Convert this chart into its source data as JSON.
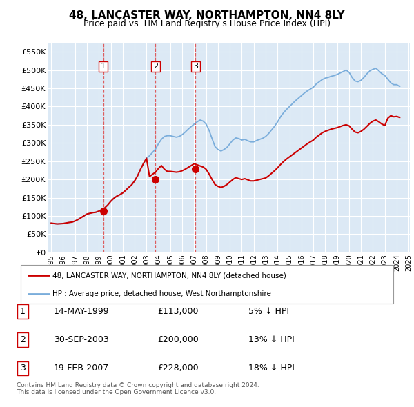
{
  "title": "48, LANCASTER WAY, NORTHAMPTON, NN4 8LY",
  "subtitle": "Price paid vs. HM Land Registry's House Price Index (HPI)",
  "plot_bg_color": "#dce9f5",
  "ylim": [
    0,
    575000
  ],
  "yticks": [
    0,
    50000,
    100000,
    150000,
    200000,
    250000,
    300000,
    350000,
    400000,
    450000,
    500000,
    550000
  ],
  "ytick_labels": [
    "£0",
    "£50K",
    "£100K",
    "£150K",
    "£200K",
    "£250K",
    "£300K",
    "£350K",
    "£400K",
    "£450K",
    "£500K",
    "£550K"
  ],
  "red_line_color": "#cc0000",
  "blue_line_color": "#7aaddb",
  "vline_color": "#dd4444",
  "box_edgecolor": "#cc0000",
  "purchases": [
    {
      "date_num": 1999.37,
      "price": 113000,
      "label": "1"
    },
    {
      "date_num": 2003.75,
      "price": 200000,
      "label": "2"
    },
    {
      "date_num": 2007.12,
      "price": 228000,
      "label": "3"
    }
  ],
  "table_entries": [
    {
      "num": "1",
      "date": "14-MAY-1999",
      "price": "£113,000",
      "pct": "5% ↓ HPI"
    },
    {
      "num": "2",
      "date": "30-SEP-2003",
      "price": "£200,000",
      "pct": "13% ↓ HPI"
    },
    {
      "num": "3",
      "date": "19-FEB-2007",
      "price": "£228,000",
      "pct": "18% ↓ HPI"
    }
  ],
  "legend_entries": [
    "48, LANCASTER WAY, NORTHAMPTON, NN4 8LY (detached house)",
    "HPI: Average price, detached house, West Northamptonshire"
  ],
  "footnote": "Contains HM Land Registry data © Crown copyright and database right 2024.\nThis data is licensed under the Open Government Licence v3.0.",
  "hpi_years": [
    1995.0,
    1995.25,
    1995.5,
    1995.75,
    1996.0,
    1996.25,
    1996.5,
    1996.75,
    1997.0,
    1997.25,
    1997.5,
    1997.75,
    1998.0,
    1998.25,
    1998.5,
    1998.75,
    1999.0,
    1999.25,
    1999.5,
    1999.75,
    2000.0,
    2000.25,
    2000.5,
    2000.75,
    2001.0,
    2001.25,
    2001.5,
    2001.75,
    2002.0,
    2002.25,
    2002.5,
    2002.75,
    2003.0,
    2003.25,
    2003.5,
    2003.75,
    2004.0,
    2004.25,
    2004.5,
    2004.75,
    2005.0,
    2005.25,
    2005.5,
    2005.75,
    2006.0,
    2006.25,
    2006.5,
    2006.75,
    2007.0,
    2007.25,
    2007.5,
    2007.75,
    2008.0,
    2008.25,
    2008.5,
    2008.75,
    2009.0,
    2009.25,
    2009.5,
    2009.75,
    2010.0,
    2010.25,
    2010.5,
    2010.75,
    2011.0,
    2011.25,
    2011.5,
    2011.75,
    2012.0,
    2012.25,
    2012.5,
    2012.75,
    2013.0,
    2013.25,
    2013.5,
    2013.75,
    2014.0,
    2014.25,
    2014.5,
    2014.75,
    2015.0,
    2015.25,
    2015.5,
    2015.75,
    2016.0,
    2016.25,
    2016.5,
    2016.75,
    2017.0,
    2017.25,
    2017.5,
    2017.75,
    2018.0,
    2018.25,
    2018.5,
    2018.75,
    2019.0,
    2019.25,
    2019.5,
    2019.75,
    2020.0,
    2020.25,
    2020.5,
    2020.75,
    2021.0,
    2021.25,
    2021.5,
    2021.75,
    2022.0,
    2022.25,
    2022.5,
    2022.75,
    2023.0,
    2023.25,
    2023.5,
    2023.75,
    2024.0,
    2024.25
  ],
  "hpi_vals": [
    80000,
    79000,
    78000,
    78500,
    79000,
    80500,
    82000,
    83000,
    86000,
    90000,
    95000,
    100000,
    105000,
    107000,
    109000,
    110000,
    113000,
    117000,
    122000,
    130000,
    140000,
    148000,
    154000,
    158000,
    163000,
    170000,
    178000,
    185000,
    196000,
    210000,
    228000,
    244000,
    258000,
    265000,
    274000,
    283000,
    298000,
    310000,
    318000,
    320000,
    320000,
    318000,
    316000,
    318000,
    323000,
    330000,
    338000,
    345000,
    352000,
    358000,
    363000,
    360000,
    352000,
    335000,
    312000,
    290000,
    282000,
    278000,
    282000,
    288000,
    298000,
    308000,
    314000,
    312000,
    308000,
    310000,
    306000,
    303000,
    303000,
    307000,
    310000,
    313000,
    318000,
    326000,
    336000,
    346000,
    358000,
    372000,
    383000,
    392000,
    400000,
    408000,
    416000,
    423000,
    430000,
    437000,
    443000,
    448000,
    453000,
    462000,
    468000,
    474000,
    478000,
    480000,
    483000,
    485000,
    488000,
    492000,
    496000,
    500000,
    494000,
    480000,
    470000,
    468000,
    472000,
    480000,
    490000,
    498000,
    502000,
    505000,
    498000,
    490000,
    485000,
    475000,
    465000,
    460000,
    460000,
    455000
  ],
  "red_years": [
    1995.0,
    1995.25,
    1995.5,
    1995.75,
    1996.0,
    1996.25,
    1996.5,
    1996.75,
    1997.0,
    1997.25,
    1997.5,
    1997.75,
    1998.0,
    1998.25,
    1998.5,
    1998.75,
    1999.0,
    1999.25,
    1999.5,
    1999.75,
    2000.0,
    2000.25,
    2000.5,
    2000.75,
    2001.0,
    2001.25,
    2001.5,
    2001.75,
    2002.0,
    2002.25,
    2002.5,
    2002.75,
    2003.0,
    2003.25,
    2003.5,
    2003.75,
    2004.0,
    2004.25,
    2004.5,
    2004.75,
    2005.0,
    2005.25,
    2005.5,
    2005.75,
    2006.0,
    2006.25,
    2006.5,
    2006.75,
    2007.0,
    2007.25,
    2007.5,
    2007.75,
    2008.0,
    2008.25,
    2008.5,
    2008.75,
    2009.0,
    2009.25,
    2009.5,
    2009.75,
    2010.0,
    2010.25,
    2010.5,
    2010.75,
    2011.0,
    2011.25,
    2011.5,
    2011.75,
    2012.0,
    2012.25,
    2012.5,
    2012.75,
    2013.0,
    2013.25,
    2013.5,
    2013.75,
    2014.0,
    2014.25,
    2014.5,
    2014.75,
    2015.0,
    2015.25,
    2015.5,
    2015.75,
    2016.0,
    2016.25,
    2016.5,
    2016.75,
    2017.0,
    2017.25,
    2017.5,
    2017.75,
    2018.0,
    2018.25,
    2018.5,
    2018.75,
    2019.0,
    2019.25,
    2019.5,
    2019.75,
    2020.0,
    2020.25,
    2020.5,
    2020.75,
    2021.0,
    2021.25,
    2021.5,
    2021.75,
    2022.0,
    2022.25,
    2022.5,
    2022.75,
    2023.0,
    2023.25,
    2023.5,
    2023.75,
    2024.0,
    2024.25
  ],
  "red_vals": [
    80000,
    79000,
    78000,
    78500,
    79000,
    80500,
    82000,
    83000,
    86000,
    90000,
    95000,
    100000,
    105000,
    107000,
    109000,
    110000,
    113000,
    117000,
    122000,
    130000,
    140000,
    148000,
    154000,
    158000,
    163000,
    170000,
    178000,
    185000,
    196000,
    210000,
    228000,
    244000,
    258000,
    208000,
    214000,
    220000,
    230000,
    238000,
    228000,
    222000,
    222000,
    221000,
    220000,
    221000,
    224000,
    228000,
    233000,
    238000,
    243000,
    240000,
    237000,
    234000,
    228000,
    215000,
    200000,
    186000,
    181000,
    178000,
    181000,
    186000,
    193000,
    200000,
    205000,
    202000,
    200000,
    202000,
    199000,
    196000,
    196000,
    198000,
    200000,
    202000,
    204000,
    210000,
    217000,
    224000,
    232000,
    241000,
    249000,
    256000,
    262000,
    268000,
    274000,
    280000,
    286000,
    292000,
    298000,
    303000,
    308000,
    316000,
    322000,
    328000,
    332000,
    335000,
    338000,
    340000,
    342000,
    345000,
    348000,
    350000,
    347000,
    338000,
    330000,
    328000,
    332000,
    338000,
    346000,
    354000,
    360000,
    363000,
    358000,
    352000,
    348000,
    368000,
    375000,
    372000,
    373000,
    370000
  ]
}
